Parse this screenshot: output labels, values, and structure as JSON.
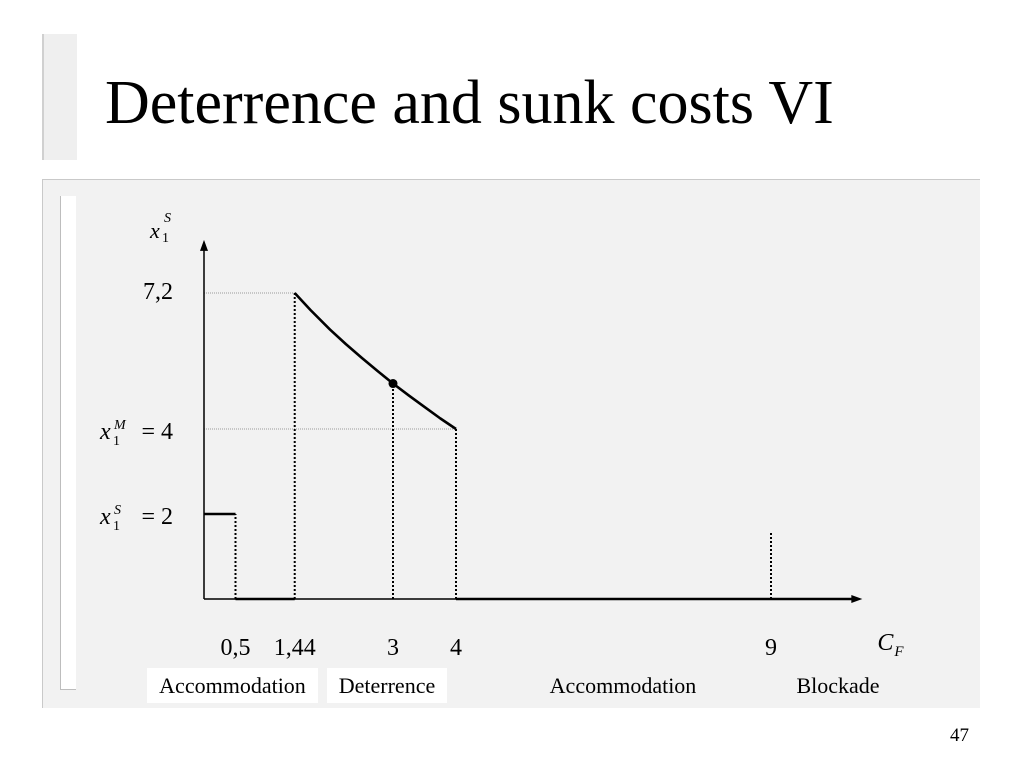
{
  "slide": {
    "title": "Deterrence and sunk costs VI",
    "page_number": "47"
  },
  "chart_data": {
    "type": "line",
    "grid": false,
    "xlim": [
      0,
      10.45
    ],
    "ylim": [
      0,
      8.45
    ],
    "y_label": {
      "base": "x",
      "sub": "1",
      "sup": "S"
    },
    "x_label": {
      "base": "C",
      "sub": "F"
    },
    "y_ticks": [
      {
        "value": 7.2,
        "label": "7,2"
      },
      {
        "value": 4,
        "symbol": {
          "base": "x",
          "sub": "1",
          "sup": "M"
        },
        "label": "= 4"
      },
      {
        "value": 2,
        "symbol": {
          "base": "x",
          "sub": "1",
          "sup": "S"
        },
        "label": "= 2"
      }
    ],
    "x_ticks": [
      {
        "value": 0.5,
        "label": "0,5"
      },
      {
        "value": 1.44,
        "label": "1,44"
      },
      {
        "value": 3,
        "label": "3"
      },
      {
        "value": 4,
        "label": "4"
      },
      {
        "value": 9,
        "label": "9"
      }
    ],
    "series": [
      {
        "x": [
          0,
          0.5
        ],
        "y": [
          2,
          2
        ]
      },
      {
        "x": [
          0.5,
          1.44
        ],
        "y": [
          0,
          0
        ]
      },
      {
        "x": [
          1.44,
          1.69,
          2.0,
          2.25,
          2.5,
          2.75,
          3.0,
          3.25,
          3.5,
          3.75,
          4.0
        ],
        "y": [
          7.2,
          6.8,
          6.34,
          6.0,
          5.68,
          5.37,
          5.07,
          4.79,
          4.52,
          4.25,
          4.0
        ]
      },
      {
        "x": [
          4,
          10.3
        ],
        "y": [
          0,
          0
        ]
      }
    ],
    "points": [
      {
        "x": 3,
        "y": 5.07
      }
    ],
    "guides": {
      "horizontal": [
        {
          "y": 7.2,
          "x_from": 0,
          "x_to": 1.44
        },
        {
          "y": 4,
          "x_from": 0,
          "x_to": 4
        }
      ],
      "vertical": [
        {
          "x": 0.5,
          "y_to": 2
        },
        {
          "x": 1.44,
          "y_to": 7.2
        },
        {
          "x": 3,
          "y_to": 5.07
        },
        {
          "x": 4,
          "y_to": 4
        },
        {
          "x": 9,
          "y_to": 1.6
        }
      ]
    },
    "regions": [
      {
        "label": "Accommodation"
      },
      {
        "label": "Deterrence"
      },
      {
        "label": "Accommodation"
      },
      {
        "label": "Blockade"
      }
    ]
  }
}
